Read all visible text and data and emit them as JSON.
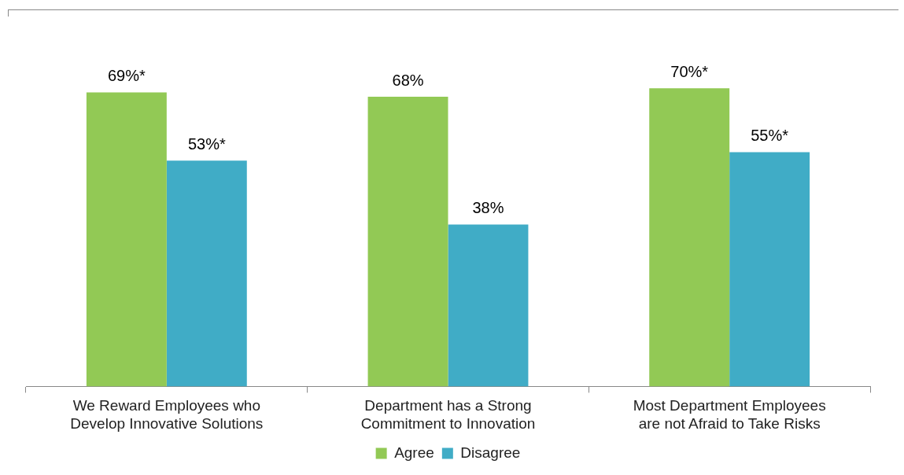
{
  "chart_data": {
    "type": "bar",
    "categories": [
      "We Reward Employees who Develop Innovative Solutions",
      "Department has a Strong Commitment to Innovation",
      "Most Department Employees are not Afraid to Take Risks"
    ],
    "series": [
      {
        "name": "Agree",
        "color": "#92c955",
        "values": [
          69,
          68,
          70
        ],
        "value_labels": [
          "69%*",
          "68%",
          "70%*"
        ]
      },
      {
        "name": "Disagree",
        "color": "#40acc6",
        "values": [
          53,
          38,
          55
        ],
        "value_labels": [
          "53%*",
          "38%",
          "55%*"
        ]
      }
    ],
    "legend": "bottom",
    "grid": false
  }
}
